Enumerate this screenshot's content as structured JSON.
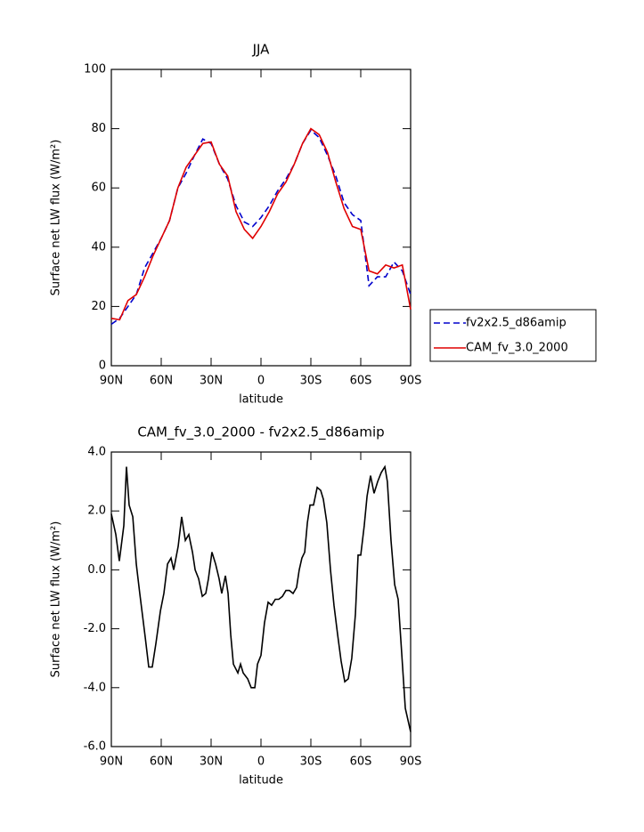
{
  "chart_data": [
    {
      "type": "line",
      "title": "JJA",
      "xlabel": "latitude",
      "ylabel": "Surface net LW flux (W/m²)",
      "x": [
        90,
        85,
        80,
        75,
        70,
        65,
        60,
        55,
        50,
        45,
        40,
        35,
        30,
        25,
        20,
        15,
        10,
        5,
        0,
        -5,
        -10,
        -15,
        -20,
        -25,
        -30,
        -35,
        -40,
        -45,
        -50,
        -55,
        -60,
        -65,
        -70,
        -75,
        -80,
        -85,
        -90
      ],
      "series": [
        {
          "name": "fv2x2.5_d86amip",
          "color": "#0000cc",
          "style": "dashed",
          "values": [
            14,
            16,
            20,
            24,
            33,
            38,
            43,
            49,
            60,
            65,
            71,
            76.5,
            75,
            68,
            63,
            54,
            48.5,
            47,
            50,
            54,
            59,
            63,
            68,
            75,
            79.5,
            77,
            71,
            64,
            55,
            51,
            49,
            27,
            30,
            30,
            35,
            32,
            24
          ]
        },
        {
          "name": "CAM_fv_3.0_2000",
          "color": "#e00000",
          "style": "solid",
          "values": [
            16,
            15.5,
            22,
            24,
            30,
            37,
            43,
            49,
            60,
            67,
            71,
            75,
            75.5,
            68,
            64,
            52,
            46,
            43,
            47,
            52,
            58,
            62,
            68,
            75,
            80,
            78,
            72,
            62,
            53,
            47,
            46,
            32,
            31,
            34,
            33,
            34,
            19
          ]
        }
      ],
      "xlim": [
        90,
        -90
      ],
      "xticks": [
        {
          "value": 90,
          "label": "90N"
        },
        {
          "value": 60,
          "label": "60N"
        },
        {
          "value": 30,
          "label": "30N"
        },
        0,
        {
          "value": -30,
          "label": "30S"
        },
        {
          "value": -60,
          "label": "60S"
        },
        {
          "value": -90,
          "label": "90S"
        }
      ],
      "ylim": [
        0,
        100
      ],
      "yticks": [
        0,
        20,
        40,
        60,
        80,
        100
      ],
      "legend": "right"
    },
    {
      "type": "line",
      "title": "CAM_fv_3.0_2000 - fv2x2.5_d86amip",
      "xlabel": "latitude",
      "ylabel": "Surface net LW flux (W/m²)",
      "x": [
        90,
        87.3,
        85.2,
        82.5,
        80.9,
        79.3,
        77.1,
        75,
        72.9,
        69.6,
        67.5,
        65.4,
        63.2,
        60.5,
        58.4,
        56.2,
        54.1,
        52.5,
        49.8,
        47.7,
        45.5,
        43.4,
        41.2,
        39.6,
        37.5,
        35.3,
        33.2,
        31.6,
        29.5,
        27.3,
        25.2,
        23.6,
        21.4,
        19.8,
        18.2,
        16.6,
        13.9,
        12.3,
        10.7,
        8,
        5.9,
        3.7,
        2.1,
        0,
        -2.1,
        -4.3,
        -6.4,
        -8.6,
        -10.7,
        -12.9,
        -15,
        -17.1,
        -19.3,
        -21.4,
        -23,
        -24.6,
        -26.3,
        -27.9,
        -29.5,
        -31.6,
        -33.8,
        -35.9,
        -37.5,
        -39.6,
        -41.8,
        -43.9,
        -46.1,
        -48.2,
        -50.4,
        -52.5,
        -54.6,
        -56.8,
        -58.4,
        -60,
        -62.1,
        -63.8,
        -65.9,
        -68,
        -70.2,
        -72.3,
        -74.5,
        -76,
        -78.2,
        -80.4,
        -82.5,
        -84.6,
        -86.8,
        -90
      ],
      "series": [
        {
          "name": null,
          "color": "#000000",
          "style": "solid",
          "values": [
            1.9,
            1.2,
            0.3,
            1.5,
            3.5,
            2.2,
            1.8,
            0.2,
            -0.8,
            -2.3,
            -3.3,
            -3.3,
            -2.5,
            -1.4,
            -0.8,
            0.2,
            0.4,
            0.0,
            0.8,
            1.8,
            1.0,
            1.2,
            0.6,
            0.0,
            -0.3,
            -0.9,
            -0.8,
            -0.3,
            0.6,
            0.2,
            -0.3,
            -0.8,
            -0.2,
            -0.8,
            -2.2,
            -3.2,
            -3.5,
            -3.2,
            -3.5,
            -3.7,
            -4.0,
            -4.0,
            -3.2,
            -2.9,
            -1.8,
            -1.1,
            -1.2,
            -1.0,
            -1.0,
            -0.9,
            -0.7,
            -0.7,
            -0.8,
            -0.6,
            0.0,
            0.4,
            0.6,
            1.6,
            2.2,
            2.2,
            2.8,
            2.7,
            2.4,
            1.6,
            0.0,
            -1.2,
            -2.2,
            -3.1,
            -3.8,
            -3.7,
            -3.0,
            -1.5,
            0.5,
            0.5,
            1.5,
            2.5,
            3.2,
            2.6,
            3.0,
            3.3,
            3.5,
            3.0,
            1.0,
            -0.5,
            -1.0,
            -2.8,
            -4.7,
            -5.5
          ]
        }
      ],
      "xlim": [
        90,
        -90
      ],
      "xticks": [
        {
          "value": 90,
          "label": "90N"
        },
        {
          "value": 60,
          "label": "60N"
        },
        {
          "value": 30,
          "label": "30N"
        },
        0,
        {
          "value": -30,
          "label": "30S"
        },
        {
          "value": -60,
          "label": "60S"
        },
        {
          "value": -90,
          "label": "90S"
        }
      ],
      "ylim": [
        -6,
        4
      ],
      "yticks": [
        {
          "value": -6,
          "label": "-6.0"
        },
        {
          "value": -4,
          "label": "-4.0"
        },
        {
          "value": -2,
          "label": "-2.0"
        },
        {
          "value": 0,
          "label": "0.0"
        },
        {
          "value": 2,
          "label": "2.0"
        },
        {
          "value": 4,
          "label": "4.0"
        }
      ]
    }
  ]
}
